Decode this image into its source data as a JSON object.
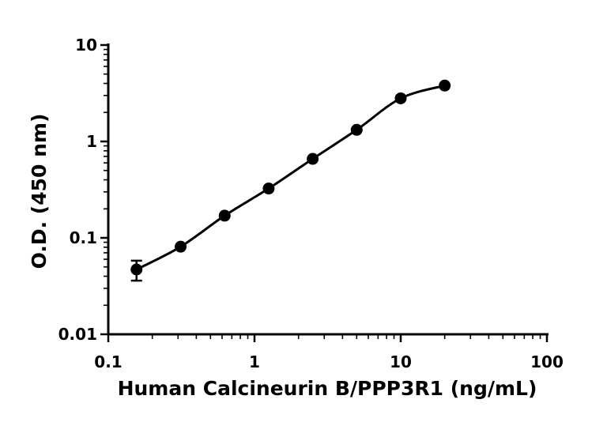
{
  "chart_data": {
    "type": "scatter",
    "title": "",
    "xlabel": "Human Calcineurin B/PPP3R1 (ng/mL)",
    "ylabel": "O.D. (450 nm)",
    "x_scale": "log",
    "y_scale": "log",
    "xlim": [
      0.1,
      100
    ],
    "ylim": [
      0.01,
      10
    ],
    "x_ticks": [
      0.1,
      1,
      10,
      100
    ],
    "x_tick_labels": [
      "0.1",
      "1",
      "10",
      "100"
    ],
    "y_ticks": [
      0.01,
      0.1,
      1,
      10
    ],
    "y_tick_labels": [
      "0.01",
      "0.1",
      "1",
      "10"
    ],
    "grid": false,
    "legend": "none",
    "series": [
      {
        "x": [
          0.156,
          0.3125,
          0.625,
          1.25,
          2.5,
          5,
          10,
          20
        ],
        "y": [
          0.047,
          0.081,
          0.17,
          0.325,
          0.66,
          1.32,
          2.8,
          3.8
        ],
        "y_error": [
          0.011,
          0,
          0,
          0,
          0,
          0,
          0,
          0
        ],
        "fit": "four-parameter logistic curve",
        "color": "#000000"
      }
    ]
  }
}
